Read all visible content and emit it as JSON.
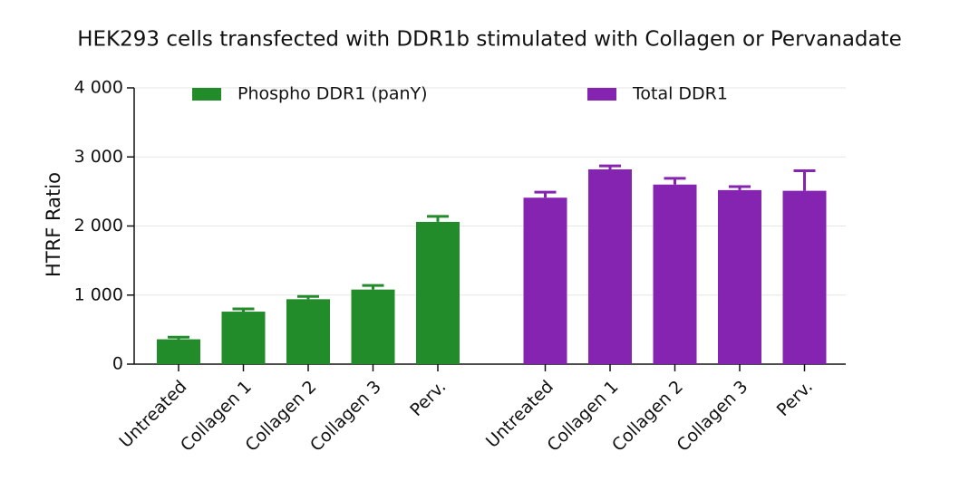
{
  "chart_data": {
    "type": "bar",
    "title": "HEK293 cells transfected with DDR1b stimulated with Collagen or Pervanadate",
    "y_label": "HTRF Ratio",
    "categories": [
      "Untreated",
      "Collagen 1",
      "Collagen 2",
      "Collagen 3",
      "Perv.",
      "Untreated",
      "Collagen 1",
      "Collagen 2",
      "Collagen 3",
      "Perv."
    ],
    "series": [
      {
        "name": "Phospho DDR1 (panY)",
        "color": "#228b2a",
        "values": [
          360,
          760,
          940,
          1080,
          2060,
          null,
          null,
          null,
          null,
          null
        ],
        "errors": [
          30,
          40,
          40,
          60,
          80,
          null,
          null,
          null,
          null,
          null
        ]
      },
      {
        "name": "Total DDR1",
        "color": "#8624b2",
        "values": [
          null,
          null,
          null,
          null,
          null,
          2410,
          2820,
          2600,
          2520,
          2510
        ],
        "errors": [
          null,
          null,
          null,
          null,
          null,
          80,
          50,
          90,
          50,
          290
        ]
      }
    ],
    "ylim": [
      0,
      4000
    ],
    "yticks": [
      0,
      {
        "value": 1000,
        "label": "1 000"
      },
      {
        "value": 2000,
        "label": "2 000"
      },
      {
        "value": 3000,
        "label": "3 000"
      },
      {
        "value": 4000,
        "label": "4 000"
      }
    ],
    "grid": true
  }
}
